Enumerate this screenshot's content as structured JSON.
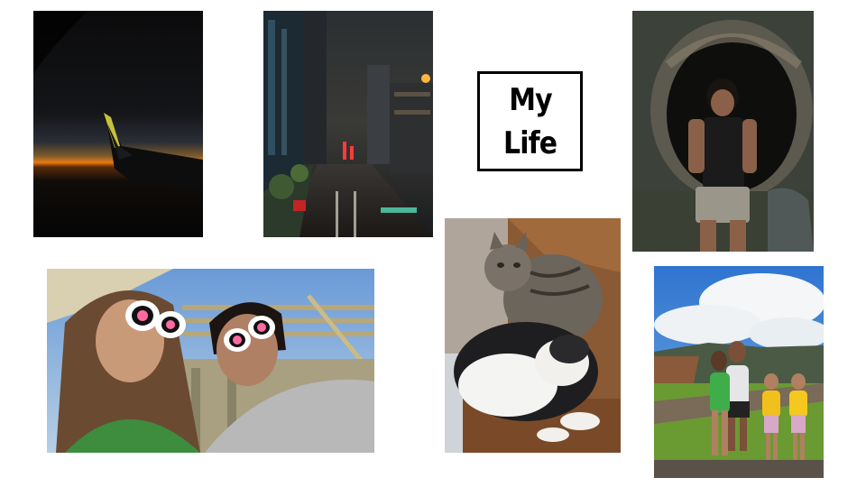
{
  "title": {
    "line1": "My",
    "line2": "Life"
  },
  "photos": [
    {
      "name": "airplane-wing-sunset-photo"
    },
    {
      "name": "rainy-city-street-night-photo"
    },
    {
      "name": "tunnel-portrait-photo"
    },
    {
      "name": "selfie-with-sunglasses-photo"
    },
    {
      "name": "two-cats-photo"
    },
    {
      "name": "family-hiking-photo"
    }
  ],
  "colors": {
    "background": "#ffffff",
    "title_border": "#000000",
    "title_text": "#000000"
  }
}
